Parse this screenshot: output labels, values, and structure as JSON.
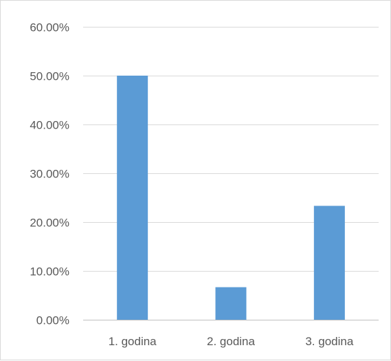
{
  "chart_data": {
    "type": "bar",
    "title": "",
    "xlabel": "",
    "ylabel": "",
    "categories": [
      "1. godina",
      "2. godina",
      "3. godina"
    ],
    "values": [
      50.0,
      6.67,
      23.33
    ],
    "ylim": [
      0,
      60
    ],
    "y_ticks": [
      0,
      10,
      20,
      30,
      40,
      50,
      60
    ],
    "y_tick_labels": [
      "0.00%",
      "10.00%",
      "20.00%",
      "30.00%",
      "40.00%",
      "50.00%",
      "60.00%"
    ],
    "grid": true,
    "legend": "none",
    "bar_color": "#5b9bd5"
  }
}
